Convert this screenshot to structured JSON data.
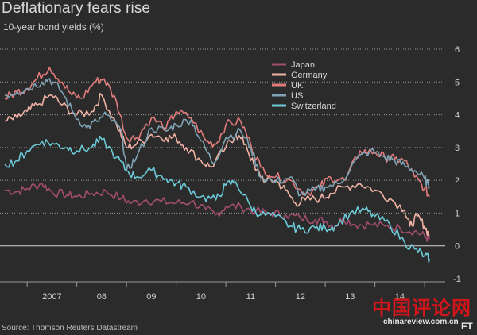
{
  "title": "Deflationary fears rise",
  "subtitle": "10-year bond yields (%)",
  "source": "Source: Thomson Reuters Datastream",
  "watermark": {
    "chinese": "中国评论网",
    "url": "chinareview.com.cn",
    "logo": "FT"
  },
  "chart_data": {
    "type": "line",
    "title": "Deflationary fears rise",
    "subtitle": "10-year bond yields (%)",
    "ylabel": "",
    "ylim": [
      -1,
      6
    ],
    "yticks": [
      -1,
      0,
      1,
      2,
      3,
      4,
      5,
      6
    ],
    "xlim": [
      2006.55,
      2015.35
    ],
    "xticks": [
      {
        "label": "2007",
        "pos": 2007.5
      },
      {
        "label": "08",
        "pos": 2008.5
      },
      {
        "label": "09",
        "pos": 2009.5
      },
      {
        "label": "10",
        "pos": 2010.5
      },
      {
        "label": "11",
        "pos": 2011.5
      },
      {
        "label": "12",
        "pos": 2012.5
      },
      {
        "label": "13",
        "pos": 2013.5
      },
      {
        "label": "14",
        "pos": 2014.5
      }
    ],
    "grid": true,
    "legend_position": "top-right",
    "series": [
      {
        "name": "Japan",
        "color": "#a44d6e",
        "x": [
          2006.55,
          2006.8,
          2007.0,
          2007.3,
          2007.5,
          2007.8,
          2008.0,
          2008.3,
          2008.6,
          2008.9,
          2009.1,
          2009.4,
          2009.7,
          2010.0,
          2010.3,
          2010.6,
          2010.8,
          2011.0,
          2011.3,
          2011.6,
          2011.9,
          2012.2,
          2012.5,
          2012.8,
          2013.0,
          2013.2,
          2013.35,
          2013.6,
          2013.9,
          2014.2,
          2014.5,
          2014.8,
          2015.0,
          2015.1
        ],
        "values": [
          1.7,
          1.65,
          1.75,
          1.9,
          1.65,
          1.55,
          1.5,
          1.6,
          1.65,
          1.45,
          1.3,
          1.4,
          1.35,
          1.3,
          1.35,
          1.1,
          0.95,
          1.2,
          1.2,
          1.05,
          1.0,
          0.95,
          0.85,
          0.8,
          0.75,
          0.6,
          0.85,
          0.65,
          0.65,
          0.6,
          0.55,
          0.45,
          0.3,
          0.2
        ]
      },
      {
        "name": "Germany",
        "color": "#f0b2a4",
        "x": [
          2006.55,
          2006.8,
          2007.0,
          2007.2,
          2007.5,
          2007.7,
          2008.0,
          2008.3,
          2008.5,
          2008.8,
          2009.0,
          2009.2,
          2009.5,
          2009.8,
          2010.0,
          2010.2,
          2010.5,
          2010.7,
          2011.0,
          2011.2,
          2011.4,
          2011.6,
          2011.8,
          2012.0,
          2012.2,
          2012.4,
          2012.6,
          2012.9,
          2013.1,
          2013.4,
          2013.7,
          2014.0,
          2014.3,
          2014.6,
          2014.7,
          2014.85,
          2015.0,
          2015.1
        ],
        "values": [
          3.8,
          3.9,
          4.1,
          4.3,
          4.6,
          4.3,
          4.0,
          4.1,
          4.6,
          3.7,
          3.0,
          3.1,
          3.4,
          3.3,
          3.3,
          3.0,
          2.6,
          2.4,
          3.0,
          3.4,
          3.1,
          2.3,
          2.0,
          2.0,
          1.7,
          1.3,
          1.4,
          1.45,
          1.6,
          1.8,
          1.9,
          1.7,
          1.45,
          1.1,
          0.6,
          0.9,
          0.6,
          0.3
        ]
      },
      {
        "name": "UK",
        "color": "#e27c7c",
        "x": [
          2006.55,
          2006.8,
          2007.0,
          2007.2,
          2007.45,
          2007.7,
          2007.9,
          2008.1,
          2008.35,
          2008.55,
          2008.8,
          2009.0,
          2009.2,
          2009.5,
          2009.8,
          2010.0,
          2010.3,
          2010.6,
          2010.8,
          2011.0,
          2011.3,
          2011.5,
          2011.7,
          2012.0,
          2012.3,
          2012.6,
          2012.9,
          2013.1,
          2013.4,
          2013.7,
          2014.0,
          2014.2,
          2014.4,
          2014.6,
          2014.8,
          2015.0,
          2015.1
        ],
        "values": [
          4.5,
          4.7,
          4.8,
          5.1,
          5.45,
          5.0,
          4.6,
          4.5,
          5.0,
          5.1,
          4.4,
          3.3,
          3.3,
          3.9,
          3.6,
          4.1,
          3.9,
          3.2,
          3.1,
          3.7,
          3.8,
          3.1,
          2.4,
          2.1,
          2.0,
          1.6,
          1.8,
          2.1,
          2.0,
          2.9,
          2.85,
          2.7,
          2.65,
          2.6,
          2.1,
          1.75,
          1.5
        ]
      },
      {
        "name": "US",
        "color": "#7fa3b4",
        "x": [
          2006.55,
          2006.8,
          2007.0,
          2007.3,
          2007.45,
          2007.7,
          2007.95,
          2008.2,
          2008.4,
          2008.6,
          2008.9,
          2009.0,
          2009.2,
          2009.5,
          2009.8,
          2010.0,
          2010.3,
          2010.5,
          2010.75,
          2011.0,
          2011.3,
          2011.5,
          2011.7,
          2012.0,
          2012.3,
          2012.5,
          2012.8,
          2013.0,
          2013.3,
          2013.6,
          2013.9,
          2014.2,
          2014.4,
          2014.6,
          2014.8,
          2015.0,
          2015.1
        ],
        "values": [
          4.6,
          4.7,
          4.8,
          5.0,
          5.1,
          4.7,
          4.0,
          3.6,
          3.8,
          4.0,
          3.5,
          2.3,
          2.7,
          3.6,
          3.5,
          3.7,
          3.85,
          3.2,
          2.5,
          3.3,
          3.5,
          3.0,
          2.1,
          1.95,
          2.1,
          1.55,
          1.7,
          1.8,
          1.9,
          2.6,
          2.9,
          2.7,
          2.6,
          2.45,
          2.3,
          2.05,
          1.8
        ]
      },
      {
        "name": "Switzerland",
        "color": "#6ccbd8",
        "x": [
          2006.55,
          2006.8,
          2007.0,
          2007.3,
          2007.55,
          2007.8,
          2008.0,
          2008.3,
          2008.5,
          2008.8,
          2009.0,
          2009.2,
          2009.5,
          2009.8,
          2010.0,
          2010.2,
          2010.5,
          2010.8,
          2011.0,
          2011.2,
          2011.5,
          2011.7,
          2012.0,
          2012.3,
          2012.5,
          2012.8,
          2013.0,
          2013.2,
          2013.5,
          2013.8,
          2014.0,
          2014.3,
          2014.6,
          2014.8,
          2015.0,
          2015.1
        ],
        "values": [
          2.5,
          2.6,
          2.9,
          3.2,
          3.1,
          3.0,
          2.9,
          3.0,
          3.25,
          2.7,
          2.3,
          2.1,
          2.3,
          2.05,
          1.9,
          1.8,
          1.5,
          1.4,
          1.85,
          1.95,
          1.2,
          0.95,
          0.9,
          0.6,
          0.5,
          0.55,
          0.55,
          0.6,
          1.0,
          1.1,
          0.9,
          0.65,
          0.1,
          -0.1,
          -0.3,
          -0.4
        ]
      }
    ]
  }
}
